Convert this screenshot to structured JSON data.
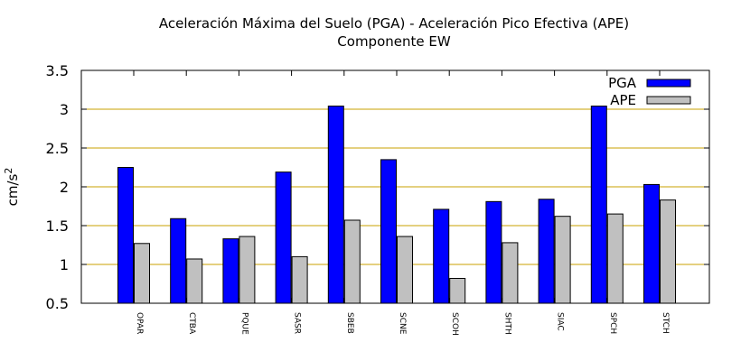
{
  "chart_data": {
    "type": "bar",
    "title_line1": "Aceleración Máxima del Suelo (PGA) -  Aceleración Pico Efectiva (APE)",
    "title_line2": "Componente EW",
    "ylabel": "cm/s",
    "ylabel_sup": "2",
    "xlabel": "",
    "ylim": [
      0.5,
      3.5
    ],
    "yticks": [
      "0.5",
      "1",
      "1.5",
      "2",
      "2.5",
      "3",
      "3.5"
    ],
    "grid": true,
    "legend_position": "top-right",
    "categories": [
      "OPAR",
      "CTBA",
      "PQUE",
      "SASR",
      "SBEB",
      "SCNE",
      "SCOH",
      "SHTH",
      "SIAC",
      "SPCH",
      "STCH"
    ],
    "series": [
      {
        "name": "PGA",
        "color": "#0000ff",
        "values": [
          2.25,
          1.59,
          1.33,
          2.19,
          3.04,
          2.35,
          1.71,
          1.81,
          1.84,
          3.04,
          2.03
        ]
      },
      {
        "name": "APE",
        "color": "#c0c0c0",
        "values": [
          1.27,
          1.07,
          1.36,
          1.1,
          1.57,
          1.36,
          0.82,
          1.28,
          1.62,
          1.65,
          1.83
        ]
      }
    ],
    "gridline_color": "#c8a000"
  }
}
